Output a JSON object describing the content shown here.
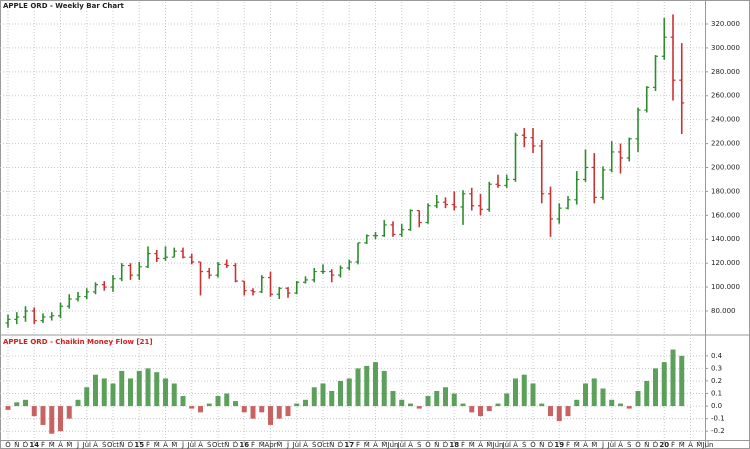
{
  "chart_data": [
    {
      "type": "ohlc",
      "title": "APPLE ORD - Weekly Bar Chart",
      "up_color": "#2e8b2e",
      "down_color": "#c83232",
      "open": [
        70,
        73,
        75,
        80,
        72,
        75,
        76,
        84,
        90,
        92,
        96,
        102,
        100,
        107,
        118,
        110,
        117,
        128,
        124,
        125,
        130,
        125,
        121,
        113,
        110,
        119,
        118,
        105,
        97,
        96,
        108,
        94,
        99,
        95,
        104,
        106,
        113,
        113,
        110,
        116,
        121,
        137,
        143,
        143,
        152,
        144,
        148,
        164,
        154,
        168,
        171,
        169,
        167,
        178,
        168,
        165,
        186,
        185,
        190,
        227,
        225,
        218,
        178,
        157,
        166,
        173,
        190,
        200,
        175,
        198,
        213,
        208,
        224,
        248,
        267,
        293,
        309,
        273
      ],
      "high": [
        77,
        79,
        84,
        83,
        78,
        79,
        87,
        94,
        96,
        99,
        104,
        105,
        110,
        120,
        120,
        121,
        134,
        131,
        134,
        133,
        133,
        128,
        121,
        116,
        121,
        123,
        120,
        105,
        99,
        110,
        113,
        100,
        100,
        105,
        109,
        116,
        119,
        115,
        118,
        123,
        137,
        144,
        146,
        156,
        155,
        153,
        165,
        164,
        170,
        177,
        175,
        180,
        181,
        183,
        178,
        188,
        194,
        194,
        229,
        233,
        233,
        223,
        184,
        170,
        176,
        197,
        215,
        212,
        201,
        222,
        220,
        225,
        250,
        268,
        294,
        325,
        328,
        304
      ],
      "low": [
        66,
        69,
        71,
        69,
        70,
        72,
        74,
        82,
        88,
        90,
        94,
        97,
        96,
        105,
        106,
        106,
        116,
        121,
        122,
        125,
        124,
        119,
        93,
        107,
        108,
        116,
        104,
        93,
        93,
        95,
        92,
        90,
        91,
        94,
        103,
        104,
        111,
        104,
        108,
        114,
        119,
        136,
        140,
        142,
        142,
        142,
        147,
        150,
        153,
        166,
        166,
        164,
        152,
        164,
        160,
        163,
        183,
        183,
        188,
        217,
        212,
        170,
        142,
        153,
        165,
        169,
        188,
        170,
        173,
        196,
        195,
        205,
        213,
        246,
        264,
        290,
        256,
        228
      ],
      "close": [
        73,
        75,
        80,
        72,
        75,
        76,
        84,
        90,
        92,
        96,
        102,
        100,
        107,
        118,
        110,
        117,
        128,
        124,
        125,
        130,
        125,
        121,
        113,
        110,
        119,
        118,
        105,
        97,
        96,
        108,
        94,
        99,
        95,
        104,
        106,
        113,
        113,
        110,
        116,
        121,
        137,
        143,
        143,
        152,
        144,
        148,
        164,
        154,
        168,
        171,
        169,
        167,
        178,
        168,
        165,
        186,
        185,
        190,
        227,
        225,
        218,
        178,
        157,
        166,
        173,
        190,
        200,
        175,
        198,
        213,
        208,
        224,
        248,
        267,
        293,
        309,
        273,
        254
      ],
      "ylim": [
        61.6,
        331.7
      ],
      "yticks": [
        {
          "value": 80,
          "label": "80.000"
        },
        {
          "value": 100,
          "label": "100.000"
        },
        {
          "value": 120,
          "label": "120.000"
        },
        {
          "value": 140,
          "label": "140.000"
        },
        {
          "value": 160,
          "label": "160.000"
        },
        {
          "value": 180,
          "label": "180.000"
        },
        {
          "value": 200,
          "label": "200.000"
        },
        {
          "value": 220,
          "label": "220.000"
        },
        {
          "value": 240,
          "label": "240.000"
        },
        {
          "value": 260,
          "label": "260.000"
        },
        {
          "value": 280,
          "label": "280.000"
        },
        {
          "value": 300,
          "label": "300.000"
        },
        {
          "value": 320,
          "label": "320.000"
        }
      ],
      "grid": true
    },
    {
      "type": "bar",
      "title": "APPLE ORD - Chaikin Money Flow [21]",
      "pos_color": "#3f8f3f",
      "neg_color": "#c04848",
      "values": [
        -0.03,
        0.03,
        0.05,
        -0.08,
        -0.15,
        -0.22,
        -0.2,
        -0.1,
        0.05,
        0.15,
        0.25,
        0.22,
        0.18,
        0.28,
        0.22,
        0.28,
        0.3,
        0.27,
        0.22,
        0.18,
        0.08,
        -0.02,
        -0.05,
        0.02,
        0.08,
        0.1,
        0.04,
        -0.05,
        -0.1,
        -0.05,
        -0.15,
        -0.1,
        -0.08,
        0.02,
        0.05,
        0.15,
        0.18,
        0.12,
        0.2,
        0.22,
        0.3,
        0.32,
        0.35,
        0.28,
        0.12,
        0.05,
        0.02,
        -0.02,
        0.08,
        0.12,
        0.15,
        0.1,
        0.02,
        -0.05,
        -0.08,
        -0.04,
        0.02,
        0.1,
        0.22,
        0.25,
        0.18,
        0.02,
        -0.08,
        -0.12,
        -0.08,
        0.05,
        0.18,
        0.22,
        0.14,
        0.05,
        0.02,
        -0.02,
        0.12,
        0.2,
        0.3,
        0.35,
        0.45,
        0.4
      ],
      "ylim": [
        -0.27,
        0.55
      ],
      "yticks": [
        -0.2,
        -0.1,
        {
          "value": 0,
          "label": "0.0"
        },
        0.1,
        0.2,
        0.3,
        0.4
      ],
      "grid": true
    }
  ],
  "x_axis": {
    "labels": [
      "O",
      "N",
      "D",
      "14",
      "F",
      "M",
      "A",
      "M",
      "J",
      "Jul",
      "A",
      "S",
      "Oct",
      "N",
      "D",
      "15",
      "F",
      "M",
      "A",
      "M",
      "J",
      "Jul",
      "A",
      "S",
      "Oct",
      "N",
      "D",
      "16",
      "F",
      "M",
      "Apr",
      "M",
      "J",
      "Jul",
      "A",
      "S",
      "Oct",
      "N",
      "D",
      "17",
      "F",
      "M",
      "A",
      "M",
      "Jun",
      "Jul",
      "A",
      "S",
      "O",
      "N",
      "D",
      "18",
      "F",
      "M",
      "A",
      "M",
      "Jun",
      "Jul",
      "A",
      "S",
      "O",
      "N",
      "D",
      "19",
      "F",
      "M",
      "A",
      "M",
      "J",
      "Jul",
      "A",
      "S",
      "O",
      "N",
      "D",
      "20",
      "F",
      "M",
      "A",
      "M",
      "Jun"
    ]
  }
}
